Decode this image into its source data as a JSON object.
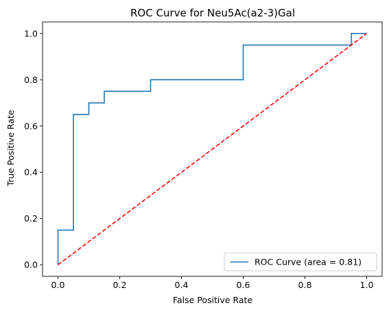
{
  "chart_data": {
    "type": "line",
    "title": "ROC Curve for Neu5Ac(a2-3)Gal",
    "xlabel": "False Positive Rate",
    "ylabel": "True Positive Rate",
    "xlim": [
      -0.05,
      1.05
    ],
    "ylim": [
      -0.05,
      1.05
    ],
    "xticks": [
      0.0,
      0.2,
      0.4,
      0.6,
      0.8,
      1.0
    ],
    "yticks": [
      0.0,
      0.2,
      0.4,
      0.6,
      0.8,
      1.0
    ],
    "xtick_labels": [
      "0.0",
      "0.2",
      "0.4",
      "0.6",
      "0.8",
      "1.0"
    ],
    "ytick_labels": [
      "0.0",
      "0.2",
      "0.4",
      "0.6",
      "0.8",
      "1.0"
    ],
    "grid": false,
    "legend_position": "lower-right",
    "series": [
      {
        "name": "ROC Curve (area = 0.81)",
        "color": "#1f77b4",
        "style": "solid",
        "step": true,
        "x": [
          0.0,
          0.0,
          0.05,
          0.05,
          0.1,
          0.1,
          0.15,
          0.15,
          0.3,
          0.3,
          0.6,
          0.6,
          0.95,
          0.95,
          1.0
        ],
        "y": [
          0.0,
          0.15,
          0.15,
          0.65,
          0.65,
          0.7,
          0.7,
          0.75,
          0.75,
          0.8,
          0.8,
          0.95,
          0.95,
          1.0,
          1.0
        ]
      },
      {
        "name": "",
        "color": "#ff0000",
        "style": "dashed",
        "x": [
          0.0,
          1.0
        ],
        "y": [
          0.0,
          1.0
        ]
      }
    ]
  }
}
